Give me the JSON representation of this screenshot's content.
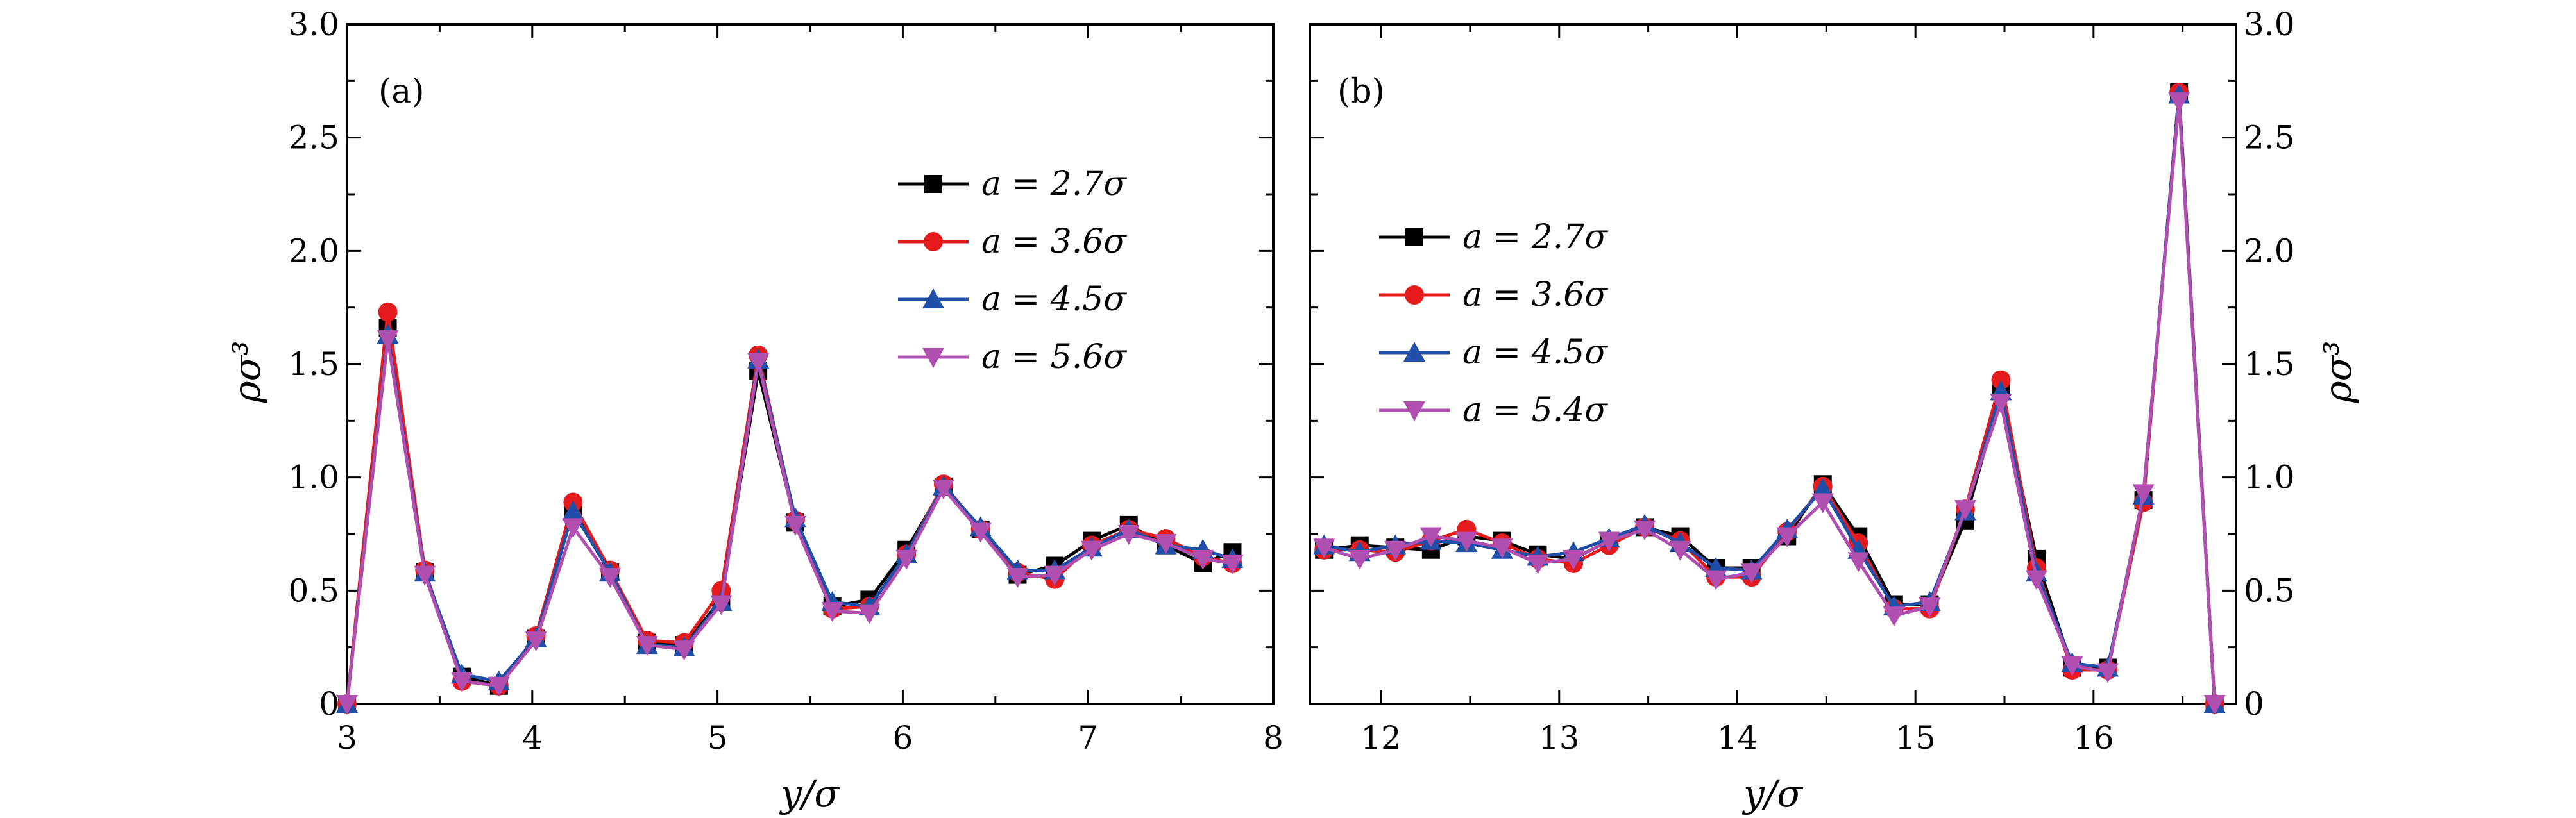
{
  "chart_data": [
    {
      "type": "line",
      "panel_label": "(a)",
      "xlabel": "y/σ",
      "ylabel": "ρσ³",
      "xlim": [
        3,
        8
      ],
      "ylim": [
        0,
        3.0
      ],
      "xticks": [
        "3",
        "4",
        "5",
        "6",
        "7",
        "8"
      ],
      "yticks": [
        "0",
        "0.5",
        "1.0",
        "1.5",
        "2.0",
        "2.5",
        "3.0"
      ],
      "legend_position": "upper-right",
      "x": [
        3.0,
        3.22,
        3.42,
        3.62,
        3.82,
        4.02,
        4.22,
        4.42,
        4.62,
        4.82,
        5.02,
        5.22,
        5.42,
        5.62,
        5.82,
        6.02,
        6.22,
        6.42,
        6.62,
        6.82,
        7.02,
        7.22,
        7.42,
        7.62,
        7.78
      ],
      "series": [
        {
          "name": "a = 2.7σ",
          "color": "#000000",
          "marker": "square",
          "values": [
            0.0,
            1.66,
            0.58,
            0.12,
            0.08,
            0.29,
            0.86,
            0.58,
            0.27,
            0.26,
            0.46,
            1.47,
            0.8,
            0.43,
            0.46,
            0.68,
            0.96,
            0.77,
            0.57,
            0.61,
            0.72,
            0.79,
            0.7,
            0.62,
            0.67
          ]
        },
        {
          "name": "a = 3.6σ",
          "color": "#e41a1c",
          "marker": "circle",
          "values": [
            0.0,
            1.73,
            0.59,
            0.1,
            0.08,
            0.3,
            0.89,
            0.59,
            0.28,
            0.27,
            0.5,
            1.54,
            0.81,
            0.42,
            0.43,
            0.66,
            0.97,
            0.77,
            0.58,
            0.55,
            0.7,
            0.77,
            0.73,
            0.65,
            0.62
          ]
        },
        {
          "name": "a = 4.5σ",
          "color": "#1f4fa8",
          "marker": "triangle-up",
          "values": [
            0.0,
            1.63,
            0.58,
            0.13,
            0.1,
            0.29,
            0.85,
            0.58,
            0.26,
            0.25,
            0.45,
            1.52,
            0.82,
            0.45,
            0.43,
            0.66,
            0.96,
            0.78,
            0.59,
            0.59,
            0.69,
            0.77,
            0.7,
            0.68,
            0.64
          ]
        },
        {
          "name": "a = 5.6σ",
          "color": "#b04fb0",
          "marker": "triangle-down",
          "values": [
            0.0,
            1.61,
            0.57,
            0.1,
            0.08,
            0.28,
            0.78,
            0.56,
            0.26,
            0.24,
            0.44,
            1.51,
            0.79,
            0.41,
            0.4,
            0.64,
            0.95,
            0.76,
            0.56,
            0.57,
            0.68,
            0.75,
            0.71,
            0.64,
            0.62
          ]
        }
      ]
    },
    {
      "type": "line",
      "panel_label": "(b)",
      "xlabel": "y/σ",
      "ylabel": "ρσ³",
      "xlim": [
        11.6,
        16.8
      ],
      "ylim": [
        0,
        3.0
      ],
      "xticks": [
        "12",
        "13",
        "14",
        "15",
        "16"
      ],
      "yticks": [
        "0",
        "0.5",
        "1.0",
        "1.5",
        "2.0",
        "2.5",
        "3.0"
      ],
      "legend_position": "upper-left",
      "x": [
        11.68,
        11.88,
        12.08,
        12.28,
        12.48,
        12.68,
        12.88,
        13.08,
        13.28,
        13.48,
        13.68,
        13.88,
        14.08,
        14.28,
        14.48,
        14.68,
        14.88,
        15.08,
        15.28,
        15.48,
        15.68,
        15.88,
        16.08,
        16.28,
        16.48,
        16.68
      ],
      "series": [
        {
          "name": "a = 2.7σ",
          "color": "#000000",
          "marker": "square",
          "values": [
            0.68,
            0.7,
            0.69,
            0.68,
            0.74,
            0.72,
            0.66,
            0.64,
            0.72,
            0.78,
            0.74,
            0.6,
            0.6,
            0.74,
            0.97,
            0.74,
            0.44,
            0.44,
            0.81,
            1.38,
            0.64,
            0.16,
            0.16,
            0.9,
            2.7,
            0.0
          ]
        },
        {
          "name": "a = 3.6σ",
          "color": "#e41a1c",
          "marker": "circle",
          "values": [
            0.68,
            0.68,
            0.67,
            0.72,
            0.77,
            0.71,
            0.64,
            0.62,
            0.7,
            0.78,
            0.72,
            0.56,
            0.56,
            0.76,
            0.96,
            0.71,
            0.42,
            0.42,
            0.86,
            1.43,
            0.6,
            0.15,
            0.15,
            0.89,
            2.7,
            0.0
          ]
        },
        {
          "name": "a = 4.5σ",
          "color": "#1f4fa8",
          "marker": "triangle-up",
          "values": [
            0.7,
            0.67,
            0.7,
            0.72,
            0.71,
            0.68,
            0.65,
            0.67,
            0.73,
            0.79,
            0.71,
            0.6,
            0.59,
            0.77,
            0.95,
            0.68,
            0.43,
            0.45,
            0.85,
            1.38,
            0.58,
            0.18,
            0.16,
            0.92,
            2.69,
            0.0
          ]
        },
        {
          "name": "a = 5.4σ",
          "color": "#b04fb0",
          "marker": "triangle-down",
          "values": [
            0.69,
            0.64,
            0.68,
            0.74,
            0.72,
            0.69,
            0.62,
            0.64,
            0.72,
            0.77,
            0.68,
            0.55,
            0.58,
            0.74,
            0.89,
            0.63,
            0.39,
            0.43,
            0.86,
            1.33,
            0.55,
            0.17,
            0.14,
            0.93,
            2.66,
            0.0
          ]
        }
      ]
    }
  ]
}
